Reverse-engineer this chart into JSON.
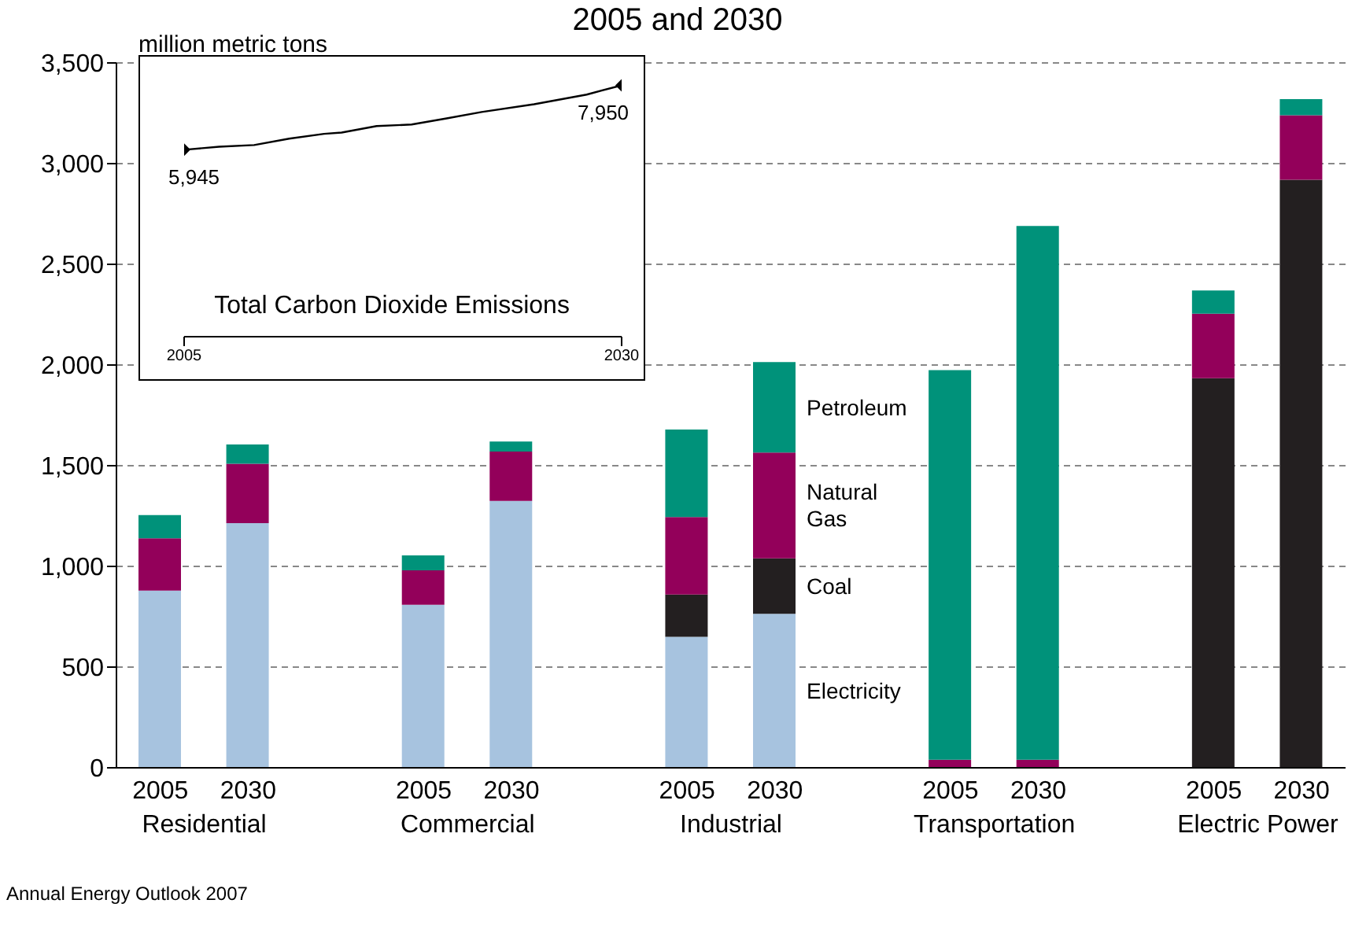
{
  "chart_data": [
    {
      "type": "bar",
      "stacked": true,
      "title": "2005 and 2030",
      "ylabel": "million metric tons",
      "categories": [
        "2005",
        "2030",
        null,
        "2005",
        "2030",
        null,
        "2005",
        "2030",
        null,
        "2005",
        "2030",
        null,
        "2005",
        "2030"
      ],
      "series": [
        {
          "name": "Electricity",
          "color": "#a7c3df",
          "values": [
            880,
            1215,
            null,
            810,
            1325,
            null,
            650,
            765,
            null,
            0,
            0,
            null,
            0,
            0
          ]
        },
        {
          "name": "Coal",
          "color": "#231f20",
          "values": [
            0,
            0,
            null,
            0,
            0,
            null,
            210,
            275,
            null,
            0,
            0,
            null,
            1935,
            2920
          ]
        },
        {
          "name": "Natural Gas",
          "color": "#93005a",
          "values": [
            260,
            295,
            null,
            170,
            245,
            null,
            385,
            525,
            null,
            40,
            40,
            null,
            320,
            320
          ]
        },
        {
          "name": "Petroleum",
          "color": "#00927a",
          "values": [
            115,
            95,
            null,
            75,
            50,
            null,
            435,
            450,
            null,
            1935,
            2650,
            null,
            115,
            80
          ]
        }
      ],
      "ylim": [
        0,
        3500
      ],
      "yticks": [
        0,
        500,
        {
          "value": 1000,
          "label": "1,000"
        },
        {
          "value": 1500,
          "label": "1,500"
        },
        {
          "value": 2000,
          "label": "2,000"
        },
        {
          "value": 2500,
          "label": "2,500"
        },
        {
          "value": 3000,
          "label": "3,000"
        },
        {
          "value": 3500,
          "label": "3,500"
        }
      ],
      "grid": "y",
      "legend": false,
      "annotations": [
        "Residential",
        "Commercial",
        "Industrial",
        "Transportation",
        "Electric Power",
        "Annual Energy Outlook 2007"
      ]
    },
    {
      "type": "line",
      "title": "Total Carbon Dioxide Emissions",
      "tick_labels": "x",
      "xlim": [
        2005,
        2030
      ],
      "xticks": [
        2005,
        2030
      ],
      "series": [
        {
          "color": "#000000",
          "x": [
            2005,
            2007,
            2009,
            2011,
            2013,
            2014,
            2016,
            2018,
            2020,
            2022,
            2025,
            2028,
            2030
          ],
          "values": [
            5945,
            6040,
            6090,
            6290,
            6440,
            6480,
            6680,
            6730,
            6920,
            7120,
            7360,
            7660,
            7950
          ],
          "value_labels": [
            "5,945",
            null,
            null,
            null,
            null,
            null,
            null,
            null,
            null,
            null,
            null,
            null,
            "7,950"
          ]
        },
        {
          "type": "scatter",
          "color": "#000000",
          "marker": "diamond",
          "x": [
            2005,
            2030
          ],
          "values": [
            5945,
            7950
          ]
        }
      ]
    }
  ]
}
